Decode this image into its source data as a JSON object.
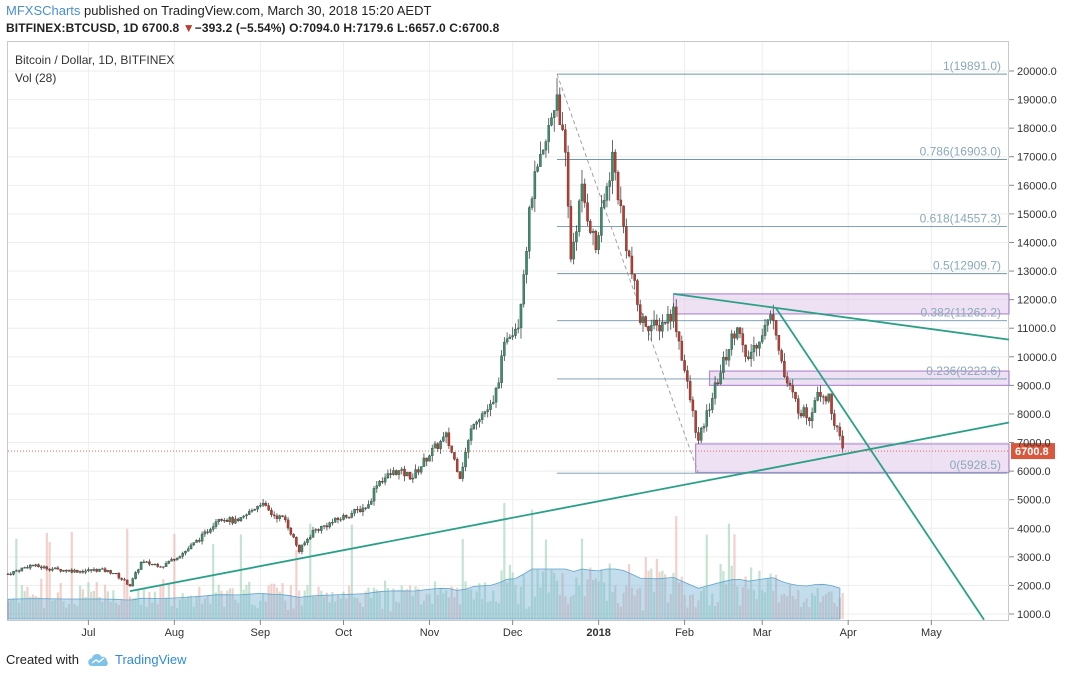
{
  "header": {
    "author": "MFXSCharts",
    "published": "published on TradingView.com, March 30, 2018 15:20 AEDT",
    "symbol": "BITFINEX:BTCUSD, 1D",
    "last": "6700.8",
    "change_arrow": "▼",
    "change": "−393.2 (−5.54%)",
    "ohlc": "O:7094.0 H:7179.6 L:6657.0 C:6700.8"
  },
  "legend": {
    "title": "Bitcoin / Dollar, 1D, BITFINEX",
    "vol": "Vol (28)"
  },
  "footer": {
    "created": "Created with",
    "brand": "TradingView"
  },
  "chart_data": {
    "type": "candlestick",
    "title": "Bitcoin / Dollar, 1D, BITFINEX",
    "ylim": [
      800,
      20700
    ],
    "y_ticks": [
      1000,
      2000,
      3000,
      4000,
      5000,
      6000,
      7000,
      8000,
      9000,
      10000,
      11000,
      12000,
      13000,
      14000,
      15000,
      16000,
      17000,
      18000,
      19000,
      20000
    ],
    "x_ticks": [
      {
        "label": "Jul",
        "date": "2017-07-01"
      },
      {
        "label": "Aug",
        "date": "2017-08-01"
      },
      {
        "label": "Sep",
        "date": "2017-09-01"
      },
      {
        "label": "Oct",
        "date": "2017-10-01"
      },
      {
        "label": "Nov",
        "date": "2017-11-01"
      },
      {
        "label": "Dec",
        "date": "2017-12-01"
      },
      {
        "label": "2018",
        "date": "2018-01-01"
      },
      {
        "label": "Feb",
        "date": "2018-02-01"
      },
      {
        "label": "Mar",
        "date": "2018-03-01"
      },
      {
        "label": "Apr",
        "date": "2018-04-01"
      },
      {
        "label": "May",
        "date": "2018-05-01"
      }
    ],
    "x_range": [
      "2017-06-02",
      "2018-05-29"
    ],
    "close_path": [
      [
        "2017-06-02",
        2400
      ],
      [
        "2017-06-10",
        2700
      ],
      [
        "2017-06-20",
        2550
      ],
      [
        "2017-06-28",
        2500
      ],
      [
        "2017-07-05",
        2550
      ],
      [
        "2017-07-10",
        2450
      ],
      [
        "2017-07-16",
        2000
      ],
      [
        "2017-07-20",
        2800
      ],
      [
        "2017-07-28",
        2700
      ],
      [
        "2017-08-05",
        3200
      ],
      [
        "2017-08-12",
        3800
      ],
      [
        "2017-08-17",
        4400
      ],
      [
        "2017-08-24",
        4200
      ],
      [
        "2017-09-01",
        4900
      ],
      [
        "2017-09-05",
        4500
      ],
      [
        "2017-09-10",
        4300
      ],
      [
        "2017-09-15",
        3200
      ],
      [
        "2017-09-20",
        3900
      ],
      [
        "2017-09-30",
        4350
      ],
      [
        "2017-10-10",
        4800
      ],
      [
        "2017-10-13",
        5600
      ],
      [
        "2017-10-20",
        6000
      ],
      [
        "2017-10-26",
        5800
      ],
      [
        "2017-11-01",
        6600
      ],
      [
        "2017-11-07",
        7200
      ],
      [
        "2017-11-12",
        5850
      ],
      [
        "2017-11-17",
        7800
      ],
      [
        "2017-11-24",
        8300
      ],
      [
        "2017-11-29",
        10800
      ],
      [
        "2017-12-03",
        11200
      ],
      [
        "2017-12-08",
        15800
      ],
      [
        "2017-12-12",
        17000
      ],
      [
        "2017-12-17",
        19300
      ],
      [
        "2017-12-20",
        16800
      ],
      [
        "2017-12-22",
        13500
      ],
      [
        "2017-12-26",
        15800
      ],
      [
        "2017-12-31",
        13800
      ],
      [
        "2018-01-06",
        17000
      ],
      [
        "2018-01-10",
        14500
      ],
      [
        "2018-01-16",
        11300
      ],
      [
        "2018-01-22",
        11000
      ],
      [
        "2018-01-28",
        11600
      ],
      [
        "2018-02-02",
        9000
      ],
      [
        "2018-02-06",
        7000
      ],
      [
        "2018-02-10",
        8300
      ],
      [
        "2018-02-14",
        9500
      ],
      [
        "2018-02-20",
        11200
      ],
      [
        "2018-02-23",
        9800
      ],
      [
        "2018-03-01",
        10900
      ],
      [
        "2018-03-05",
        11500
      ],
      [
        "2018-03-09",
        9300
      ],
      [
        "2018-03-14",
        8200
      ],
      [
        "2018-03-18",
        7900
      ],
      [
        "2018-03-21",
        8900
      ],
      [
        "2018-03-25",
        8500
      ],
      [
        "2018-03-30",
        6700
      ]
    ],
    "volume_note": "volume histogram with moving average, no numeric scale",
    "fib_levels": [
      {
        "ratio": "1",
        "value": 19891.0,
        "label": "1(19891.0)"
      },
      {
        "ratio": "0.786",
        "value": 16903.0,
        "label": "0.786(16903.0)"
      },
      {
        "ratio": "0.618",
        "value": 14557.3,
        "label": "0.618(14557.3)"
      },
      {
        "ratio": "0.5",
        "value": 12909.7,
        "label": "0.5(12909.7)"
      },
      {
        "ratio": "0.382",
        "value": 11262.2,
        "label": "0.382(11262.2)"
      },
      {
        "ratio": "0.236",
        "value": 9223.6,
        "label": "0.236(9223.6)"
      },
      {
        "ratio": "0",
        "value": 5928.5,
        "label": "0(5928.5)"
      }
    ],
    "fib_start_date": "2017-12-17",
    "fib_start_price": 19891,
    "fib_end_date": "2018-02-06",
    "fib_end_price": 5928.5,
    "zones": [
      {
        "from": "2018-01-28",
        "to": "2018-05-29",
        "low": 11500,
        "high": 12200
      },
      {
        "from": "2018-02-10",
        "to": "2018-05-29",
        "low": 9000,
        "high": 9500
      },
      {
        "from": "2018-02-05",
        "to": "2018-05-29",
        "low": 5950,
        "high": 6950
      }
    ],
    "trendlines": [
      {
        "name": "support",
        "from": [
          "2017-07-16",
          1800
        ],
        "to": [
          "2018-05-29",
          7700
        ]
      },
      {
        "name": "resistance",
        "from": [
          "2018-01-28",
          12200
        ],
        "to": [
          "2018-05-29",
          10600
        ]
      },
      {
        "name": "downtrend",
        "from": [
          "2018-03-06",
          11700
        ],
        "to": [
          "2018-05-20",
          800
        ]
      }
    ],
    "last_price": 6700.8,
    "last_price_label": "6700.8",
    "colors": {
      "up": "#3a8f6b",
      "down": "#c0392b",
      "wick": "#444444",
      "volume": "#7ab3d6",
      "trend": "#2aa088",
      "fib": "#6f96ad",
      "zone": "#e0c8ea",
      "zone_border": "#b48cd0",
      "price_tag": "#d9573d"
    }
  }
}
